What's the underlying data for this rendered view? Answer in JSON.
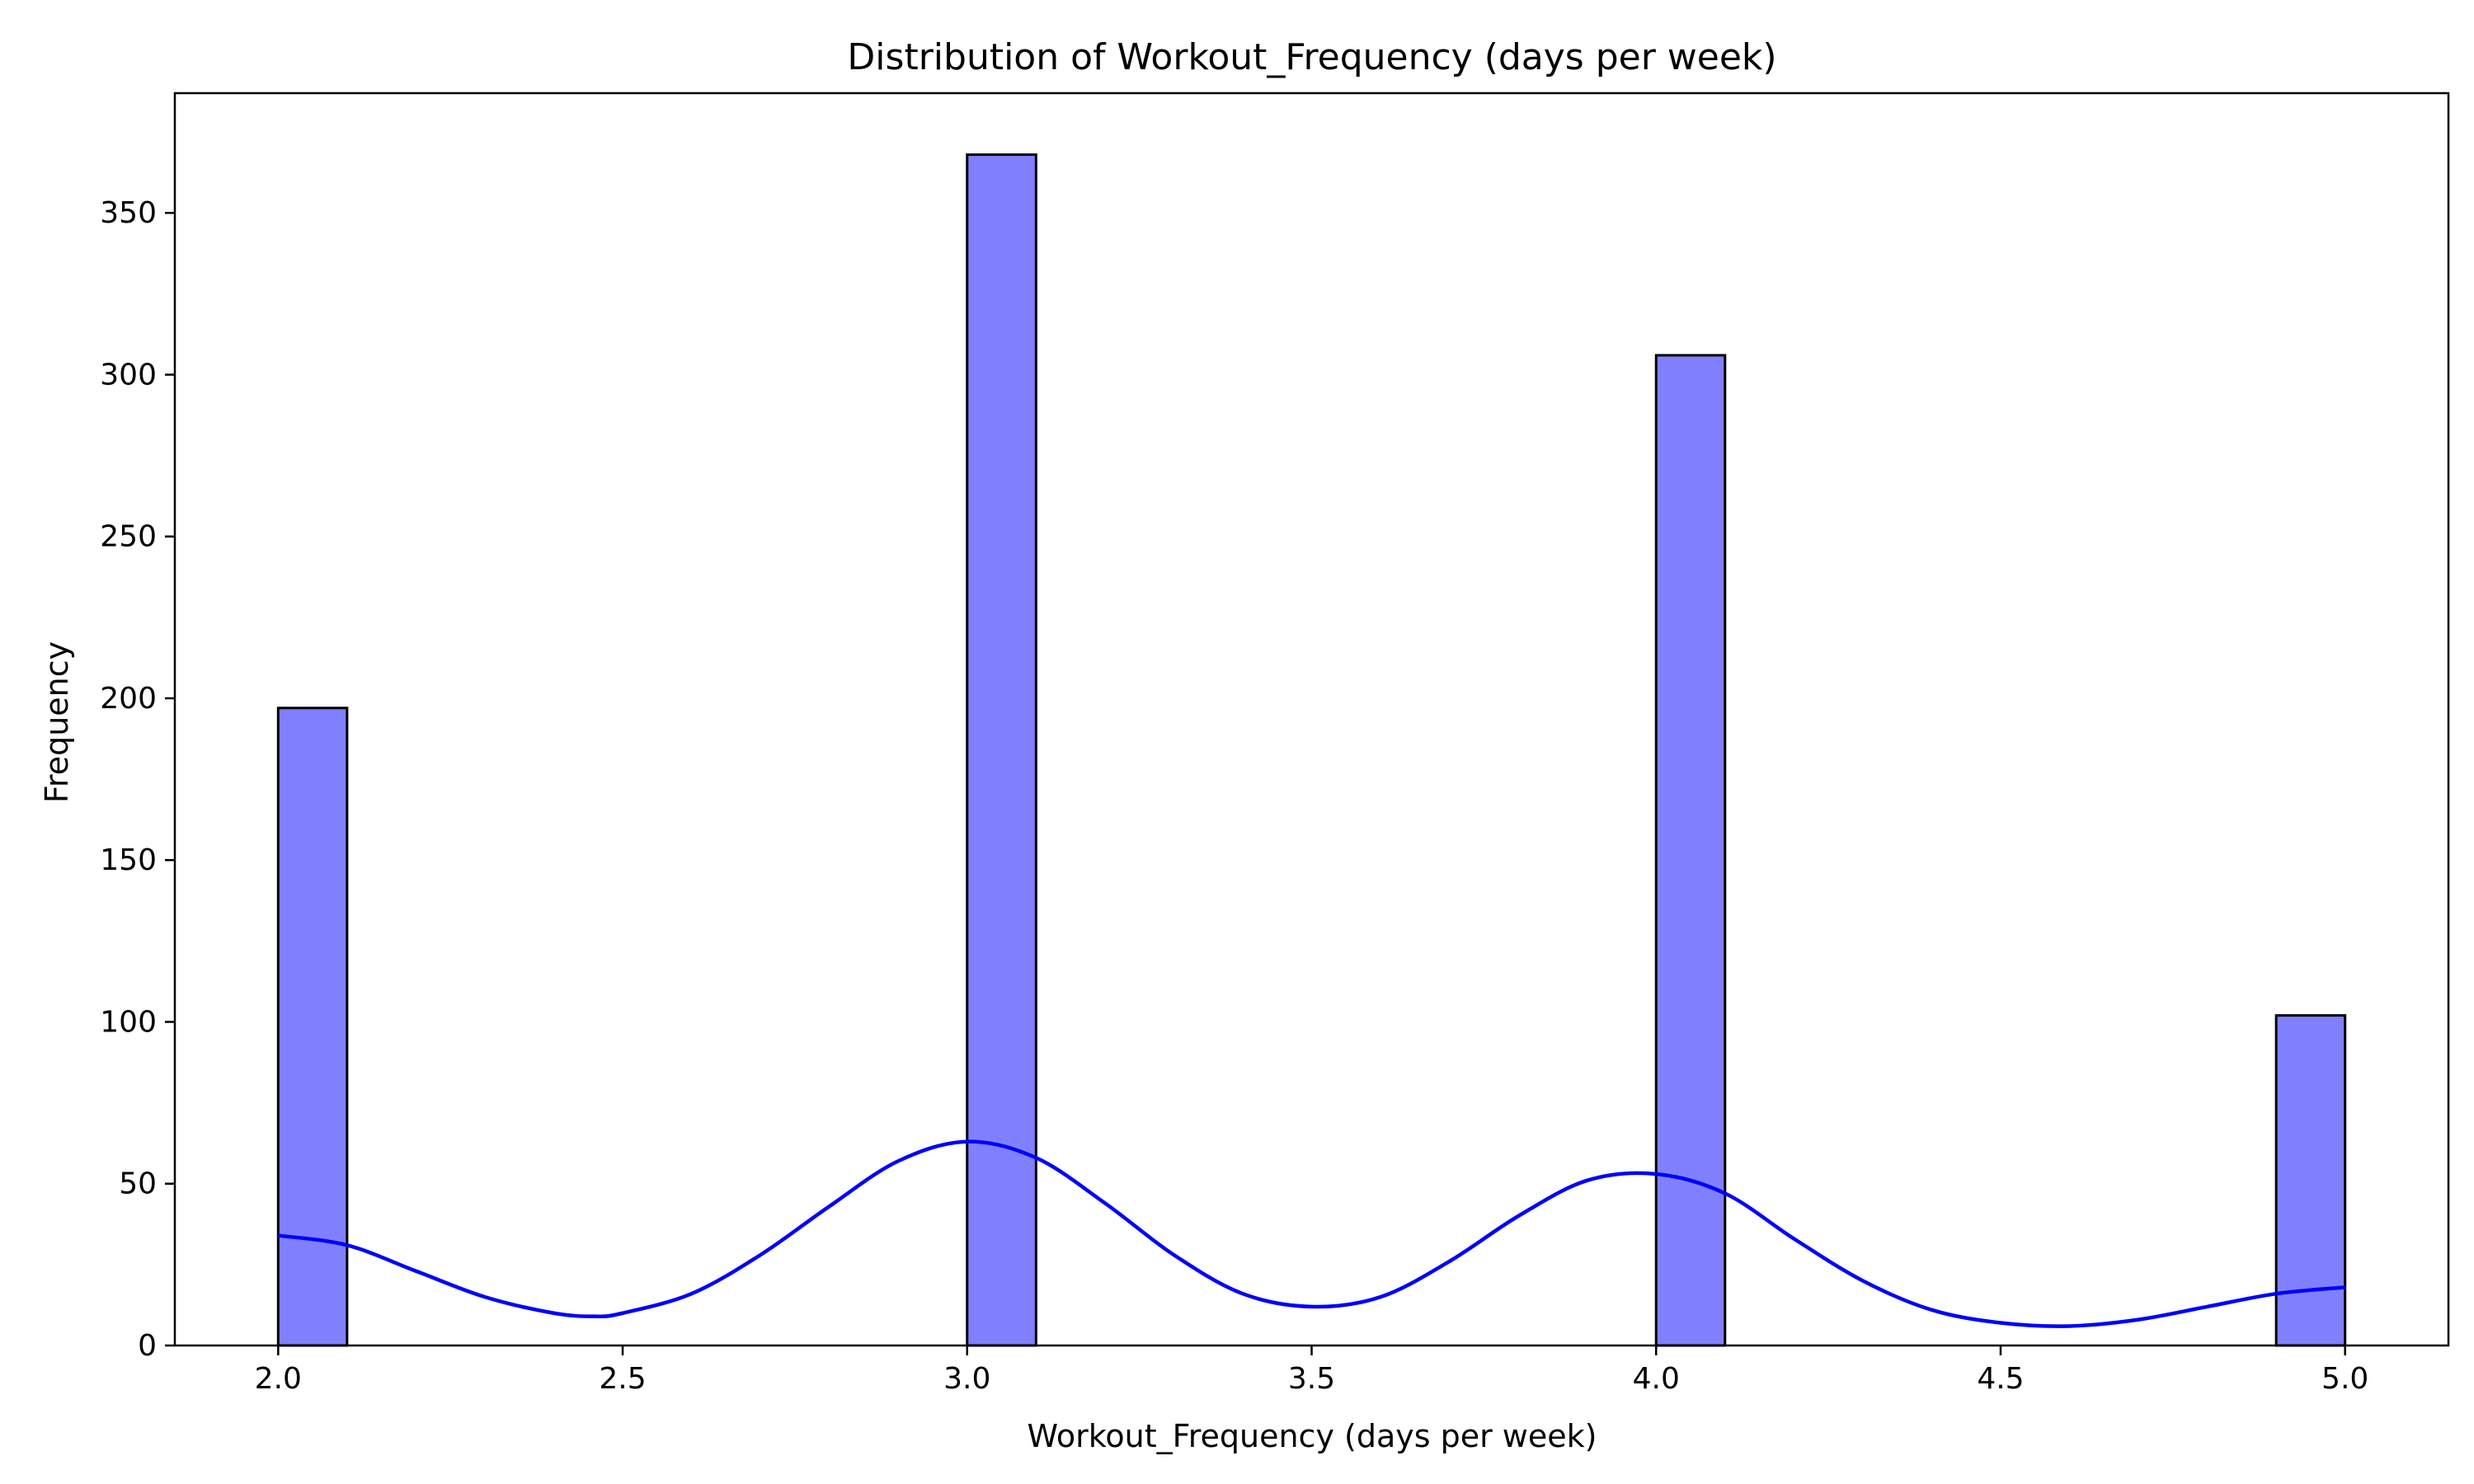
{
  "chart_data": {
    "type": "bar",
    "title": "Distribution of Workout_Frequency (days per week)",
    "xlabel": "Workout_Frequency (days per week)",
    "ylabel": "Frequency",
    "xlim": [
      1.85,
      5.15
    ],
    "ylim": [
      0,
      387
    ],
    "x_ticks": [
      "2.0",
      "2.5",
      "3.0",
      "3.5",
      "4.0",
      "4.5",
      "5.0"
    ],
    "y_ticks": [
      "0",
      "50",
      "100",
      "150",
      "200",
      "250",
      "300",
      "350"
    ],
    "bars": [
      {
        "x_start": 2.0,
        "x_end": 2.1,
        "value": 197
      },
      {
        "x_start": 3.0,
        "x_end": 3.1,
        "value": 368
      },
      {
        "x_start": 4.0,
        "x_end": 4.1,
        "value": 306
      },
      {
        "x_start": 4.9,
        "x_end": 5.0,
        "value": 102
      }
    ],
    "kde_curve": {
      "x": [
        2.0,
        2.1,
        2.2,
        2.3,
        2.4,
        2.46,
        2.5,
        2.6,
        2.7,
        2.8,
        2.9,
        3.0,
        3.1,
        3.2,
        3.3,
        3.4,
        3.5,
        3.6,
        3.7,
        3.8,
        3.9,
        4.0,
        4.1,
        4.2,
        4.3,
        4.4,
        4.5,
        4.6,
        4.7,
        4.8,
        4.9,
        5.0
      ],
      "y": [
        34,
        31,
        23,
        15,
        10,
        9,
        10,
        16,
        28,
        43,
        57,
        63,
        58,
        44,
        28,
        16,
        12,
        15,
        26,
        40,
        51,
        53,
        47,
        33,
        20,
        11,
        7,
        6,
        8,
        12,
        16,
        18
      ]
    },
    "colors": {
      "bar_fill": "#8080ff",
      "bar_edge": "#000000",
      "kde_line": "#0000ff"
    },
    "grid": false
  }
}
